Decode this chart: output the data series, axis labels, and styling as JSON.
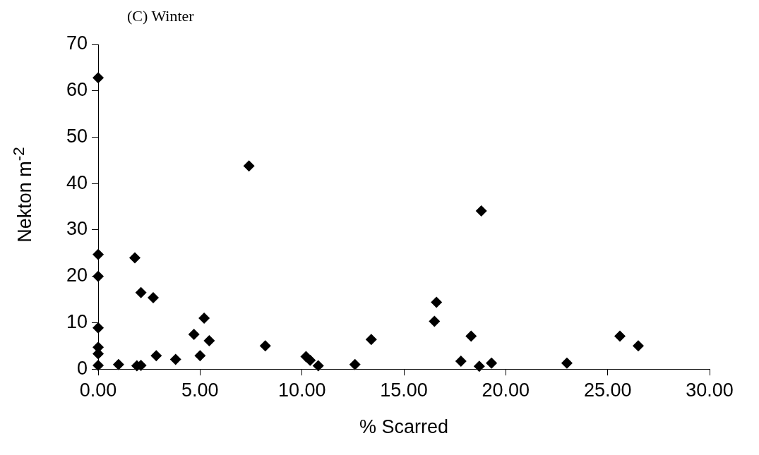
{
  "chart_data": {
    "type": "scatter",
    "title": "(C) Winter",
    "xlabel": "% Scarred",
    "ylabel": "Nekton m$^{-2}$",
    "x": [
      0,
      0,
      0,
      0,
      0,
      0,
      0,
      1.0,
      1.8,
      1.9,
      2.1,
      2.1,
      2.7,
      2.85,
      3.8,
      4.7,
      5.0,
      5.2,
      5.45,
      7.4,
      8.2,
      10.2,
      10.4,
      10.8,
      12.6,
      13.4,
      16.5,
      16.6,
      17.8,
      18.3,
      18.7,
      18.8,
      19.3,
      23.0,
      25.6,
      26.5
    ],
    "series": [
      {
        "color": "#000000",
        "values": [
          62.8,
          24.7,
          20,
          8.9,
          4.7,
          3.3,
          0.8,
          1.0,
          24,
          0.7,
          0.8,
          16.5,
          15.4,
          2.9,
          2.1,
          7.5,
          2.9,
          11,
          6.1,
          43.8,
          5.0,
          2.7,
          1.9,
          0.7,
          1.0,
          6.4,
          10.3,
          14.4,
          1.7,
          7.1,
          0.6,
          34.1,
          1.3,
          1.3,
          7.1,
          5.0
        ]
      }
    ],
    "xlim": [
      0,
      30
    ],
    "xticks": [
      {
        "value": 0,
        "label": "0.00"
      },
      {
        "value": 5,
        "label": "5.00"
      },
      {
        "value": 10,
        "label": "10.00"
      },
      {
        "value": 15,
        "label": "15.00"
      },
      {
        "value": 20,
        "label": "20.00"
      },
      {
        "value": 25,
        "label": "25.00"
      },
      {
        "value": 30,
        "label": "30.00"
      }
    ],
    "ylim": [
      0,
      70
    ],
    "yticks": [
      0,
      10,
      20,
      30,
      40,
      50,
      60,
      70
    ],
    "grid": false,
    "legend": false,
    "marker": "diamond"
  }
}
